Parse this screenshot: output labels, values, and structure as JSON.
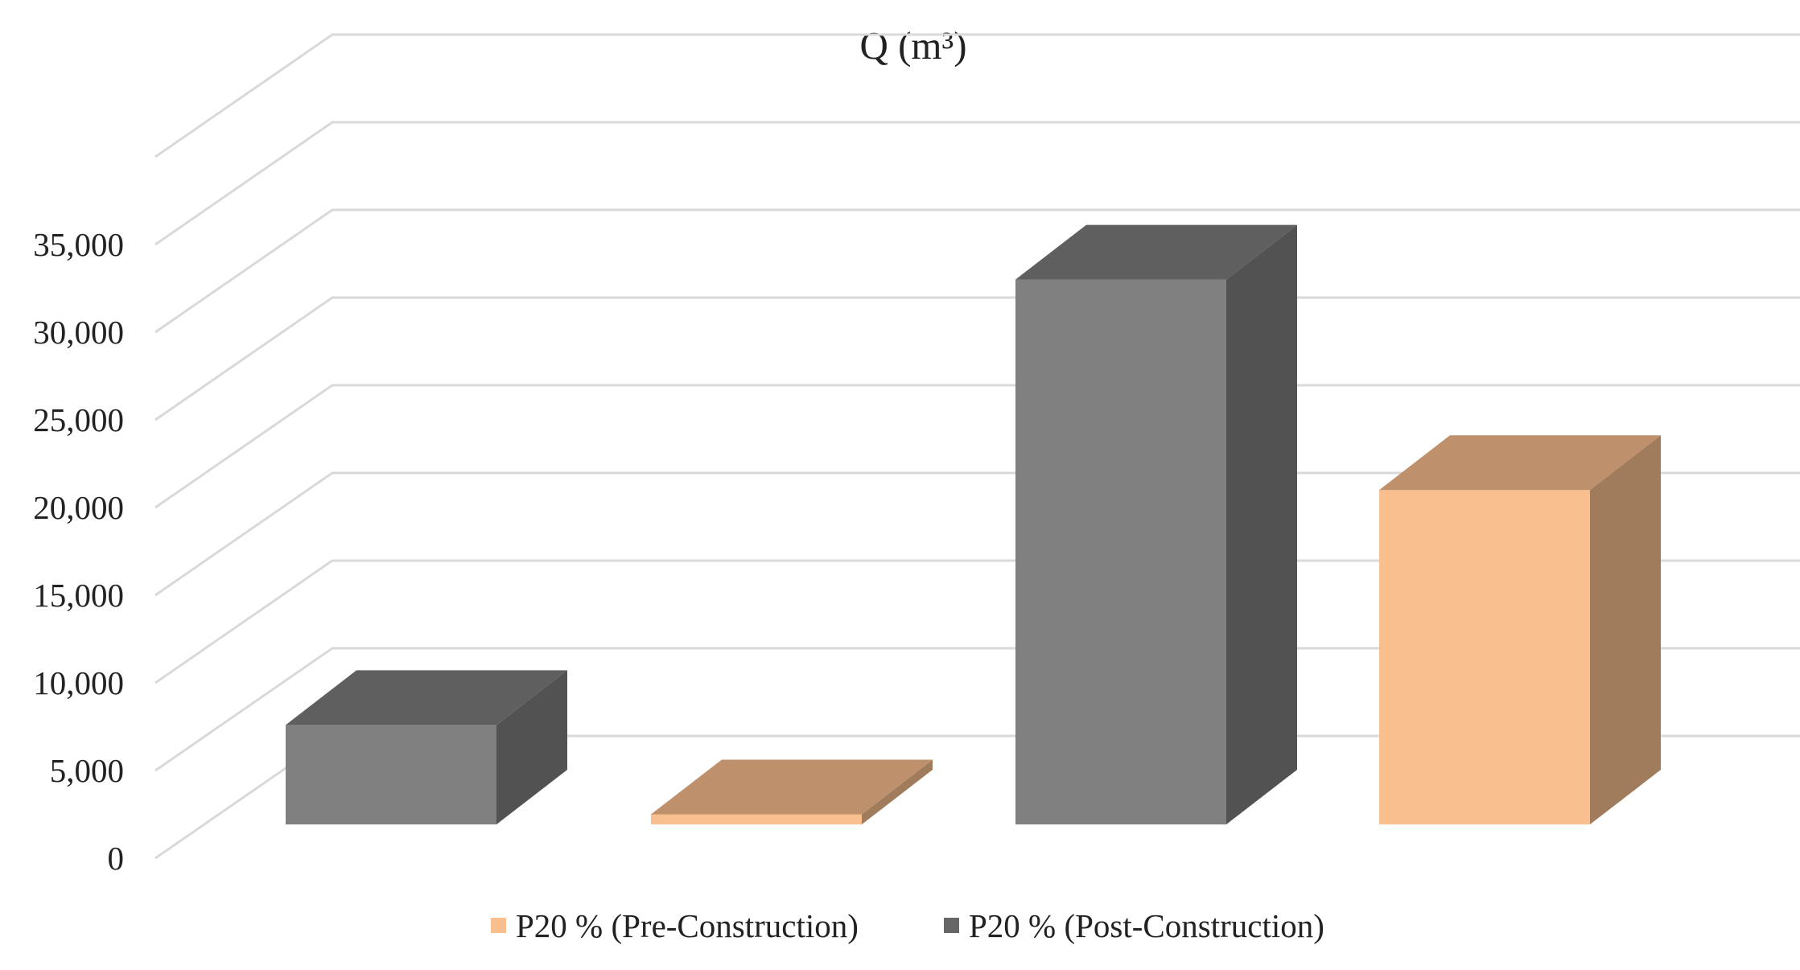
{
  "chart_data": {
    "type": "bar",
    "title": "Q (m³)",
    "xlabel": "",
    "ylabel": "",
    "ylim": [
      0,
      40000
    ],
    "y_ticks": [
      0,
      5000,
      10000,
      15000,
      20000,
      25000,
      30000,
      35000
    ],
    "y_tick_labels": [
      "0",
      "5,000",
      "10,000",
      "15,000",
      "20,000",
      "25,000",
      "30,000",
      "35,000"
    ],
    "grid": true,
    "three_d": true,
    "legend_position": "bottom",
    "categories": [
      "",
      ""
    ],
    "series": [
      {
        "name": "P20 % (Pre-Construction)",
        "color": "#F9BF8F",
        "values": [
          2500,
          21000
        ]
      },
      {
        "name": "P20 % (Post-Construction)",
        "color": "#808080",
        "values": [
          7600,
          33000
        ]
      }
    ]
  }
}
